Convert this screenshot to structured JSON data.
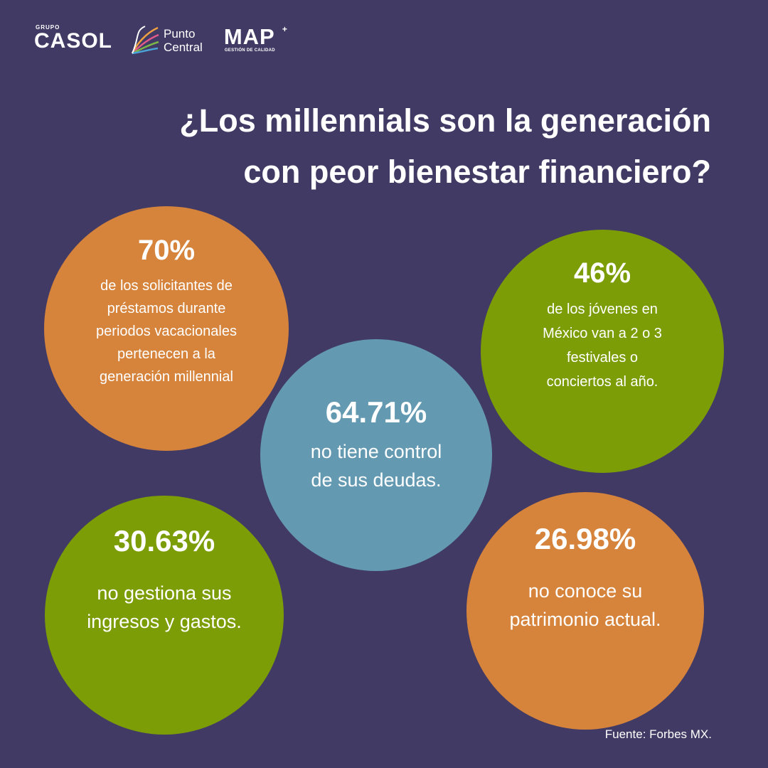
{
  "brand": {
    "casol_small": "GRUPO",
    "casol_main": "CASOL",
    "punto_line1": "Punto",
    "punto_line2": "Central",
    "map_main": "MAP",
    "map_plus": "+",
    "map_sub": "GESTIÓN DE CALIDAD"
  },
  "title_line1": "¿Los millennials son la generación",
  "title_line2": "con peor bienestar financiero?",
  "stats": [
    {
      "value": "70%",
      "lines": [
        "de los solicitantes de",
        "préstamos durante",
        "periodos vacacionales",
        "pertenecen a la",
        "generación millennial"
      ],
      "color": "#d6833b"
    },
    {
      "value": "46%",
      "lines": [
        "de los jóvenes en",
        "México van a 2 o 3",
        "festivales o",
        "conciertos al año."
      ],
      "color": "#7c9d06"
    },
    {
      "value": "64.71%",
      "lines": [
        "no tiene control",
        "de sus deudas."
      ],
      "color": "#6399b1"
    },
    {
      "value": "30.63%",
      "lines": [
        "no gestiona sus",
        "ingresos y gastos."
      ],
      "color": "#7c9d06"
    },
    {
      "value": "26.98%",
      "lines": [
        "no conoce su",
        "patrimonio actual."
      ],
      "color": "#d6833b"
    }
  ],
  "source": "Fuente: Forbes MX.",
  "colors": {
    "background": "#413a64",
    "orange": "#d6833b",
    "green": "#7c9d06",
    "blue": "#6399b1"
  }
}
